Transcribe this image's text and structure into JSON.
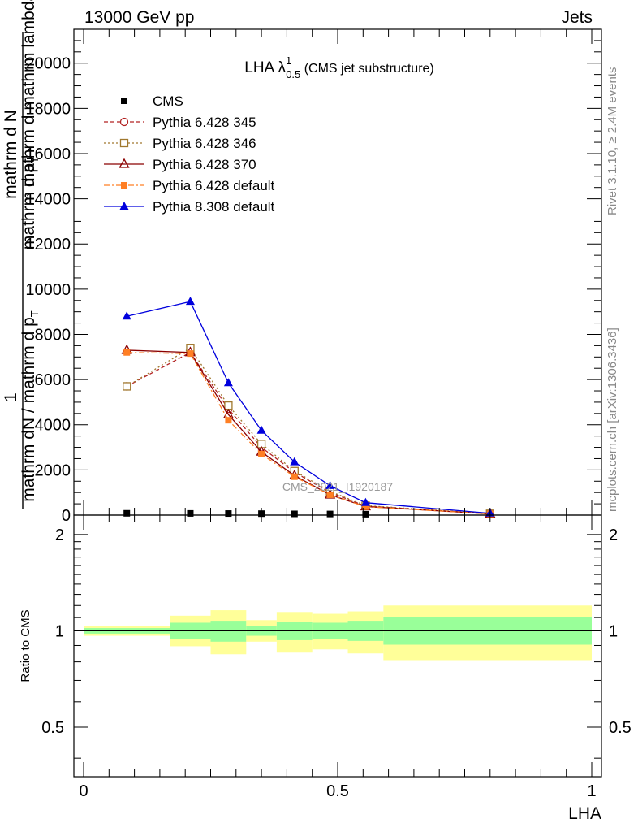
{
  "header": {
    "energy_label": "13000 GeV pp",
    "process_label": "Jets"
  },
  "side_labels": {
    "rivet": "Rivet 3.1.10, ≥ 2.4M events",
    "mcplots": "mcplots.cern.ch [arXiv:1306.3436]"
  },
  "watermark": "CMS_2021_I1920187",
  "colors": {
    "cms": "#000000",
    "p345": "#b22222",
    "p346": "#a0782e",
    "p370": "#8b0000",
    "p6def": "#ff7f24",
    "p8def": "#0000dd",
    "band_inner": "#99ff99",
    "band_outer": "#ffff99"
  },
  "chart_data": [
    {
      "type": "line",
      "title_main": "LHA λ",
      "title_sup": "1",
      "title_sub": "0.5",
      "title_tail": " (CMS jet substructure)",
      "ylabel_top": "1",
      "ylabel_mid": "mathrm dN / mathrm d p",
      "ylabel_mid_sub": "T",
      "ylabel_right": "mathrm d N",
      "ylabel_right2": "mathrm d p",
      "ylabel_right2_sub": "T",
      "ylabel_right3": "mathrm d mathrm lambda",
      "xlim": [
        0,
        1
      ],
      "ylim": [
        0,
        21500
      ],
      "yticks": [
        0,
        2000,
        4000,
        6000,
        8000,
        10000,
        12000,
        14000,
        16000,
        18000,
        20000
      ],
      "ytick_labels": [
        "0",
        "2000",
        "4000",
        "6000",
        "8000",
        "10000",
        "12000",
        "14000",
        "16000",
        "18000",
        "20000"
      ],
      "legend_position": "top-left",
      "series": [
        {
          "name": "CMS",
          "style": "data",
          "color_key": "cms",
          "x": [
            0.085,
            0.21,
            0.285,
            0.35,
            0.415,
            0.485,
            0.555,
            0.8
          ],
          "y": [
            80,
            75,
            70,
            65,
            55,
            50,
            40,
            20
          ]
        },
        {
          "name": "Pythia 6.428 345",
          "style": "dashed",
          "marker": "circle-open",
          "color_key": "p345",
          "x": [
            0.085,
            0.21,
            0.285,
            0.35,
            0.415,
            0.485,
            0.555,
            0.8
          ],
          "y": [
            5700,
            7200,
            4700,
            3000,
            1900,
            1000,
            400,
            60
          ]
        },
        {
          "name": "Pythia 6.428 346",
          "style": "dotted",
          "marker": "square-open",
          "color_key": "p346",
          "x": [
            0.085,
            0.21,
            0.285,
            0.35,
            0.415,
            0.485,
            0.555,
            0.8
          ],
          "y": [
            5700,
            7400,
            4850,
            3150,
            1950,
            1050,
            420,
            60
          ]
        },
        {
          "name": "Pythia 6.428 370",
          "style": "solid",
          "marker": "triangle-open",
          "color_key": "p370",
          "x": [
            0.085,
            0.21,
            0.285,
            0.35,
            0.415,
            0.485,
            0.555,
            0.8
          ],
          "y": [
            7300,
            7200,
            4450,
            2800,
            1750,
            900,
            380,
            55
          ]
        },
        {
          "name": "Pythia 6.428 default",
          "style": "dashdot",
          "marker": "square-filled",
          "color_key": "p6def",
          "x": [
            0.085,
            0.21,
            0.285,
            0.35,
            0.415,
            0.485,
            0.555,
            0.8
          ],
          "y": [
            7200,
            7150,
            4200,
            2700,
            1700,
            900,
            370,
            55
          ]
        },
        {
          "name": "Pythia 8.308 default",
          "style": "solid",
          "marker": "triangle-filled",
          "color_key": "p8def",
          "x": [
            0.085,
            0.21,
            0.285,
            0.35,
            0.415,
            0.485,
            0.555,
            0.8
          ],
          "y": [
            8800,
            9450,
            5850,
            3750,
            2350,
            1300,
            550,
            80
          ]
        }
      ]
    },
    {
      "type": "area",
      "ylabel": "Ratio to CMS",
      "xlabel": "LHA",
      "xlim": [
        0,
        1
      ],
      "ylim": [
        0.35,
        2.3
      ],
      "log_y": true,
      "yticks": [
        0.5,
        1,
        2
      ],
      "ytick_labels": [
        "0.5",
        "1",
        "2"
      ],
      "xticks": [
        0,
        0.5,
        1
      ],
      "xtick_labels": [
        "0",
        "0.5",
        "1"
      ],
      "bins": [
        {
          "x0": 0.0,
          "x1": 0.17,
          "inner": [
            0.98,
            1.02
          ],
          "outer": [
            0.965,
            1.035
          ]
        },
        {
          "x0": 0.17,
          "x1": 0.25,
          "inner": [
            0.945,
            1.06
          ],
          "outer": [
            0.895,
            1.115
          ]
        },
        {
          "x0": 0.25,
          "x1": 0.32,
          "inner": [
            0.925,
            1.075
          ],
          "outer": [
            0.845,
            1.16
          ]
        },
        {
          "x0": 0.32,
          "x1": 0.38,
          "inner": [
            0.965,
            1.035
          ],
          "outer": [
            0.925,
            1.08
          ]
        },
        {
          "x0": 0.38,
          "x1": 0.45,
          "inner": [
            0.935,
            1.065
          ],
          "outer": [
            0.855,
            1.145
          ]
        },
        {
          "x0": 0.45,
          "x1": 0.52,
          "inner": [
            0.945,
            1.06
          ],
          "outer": [
            0.875,
            1.13
          ]
        },
        {
          "x0": 0.52,
          "x1": 0.59,
          "inner": [
            0.93,
            1.075
          ],
          "outer": [
            0.85,
            1.15
          ]
        },
        {
          "x0": 0.59,
          "x1": 1.0,
          "inner": [
            0.905,
            1.105
          ],
          "outer": [
            0.81,
            1.2
          ]
        }
      ]
    }
  ]
}
